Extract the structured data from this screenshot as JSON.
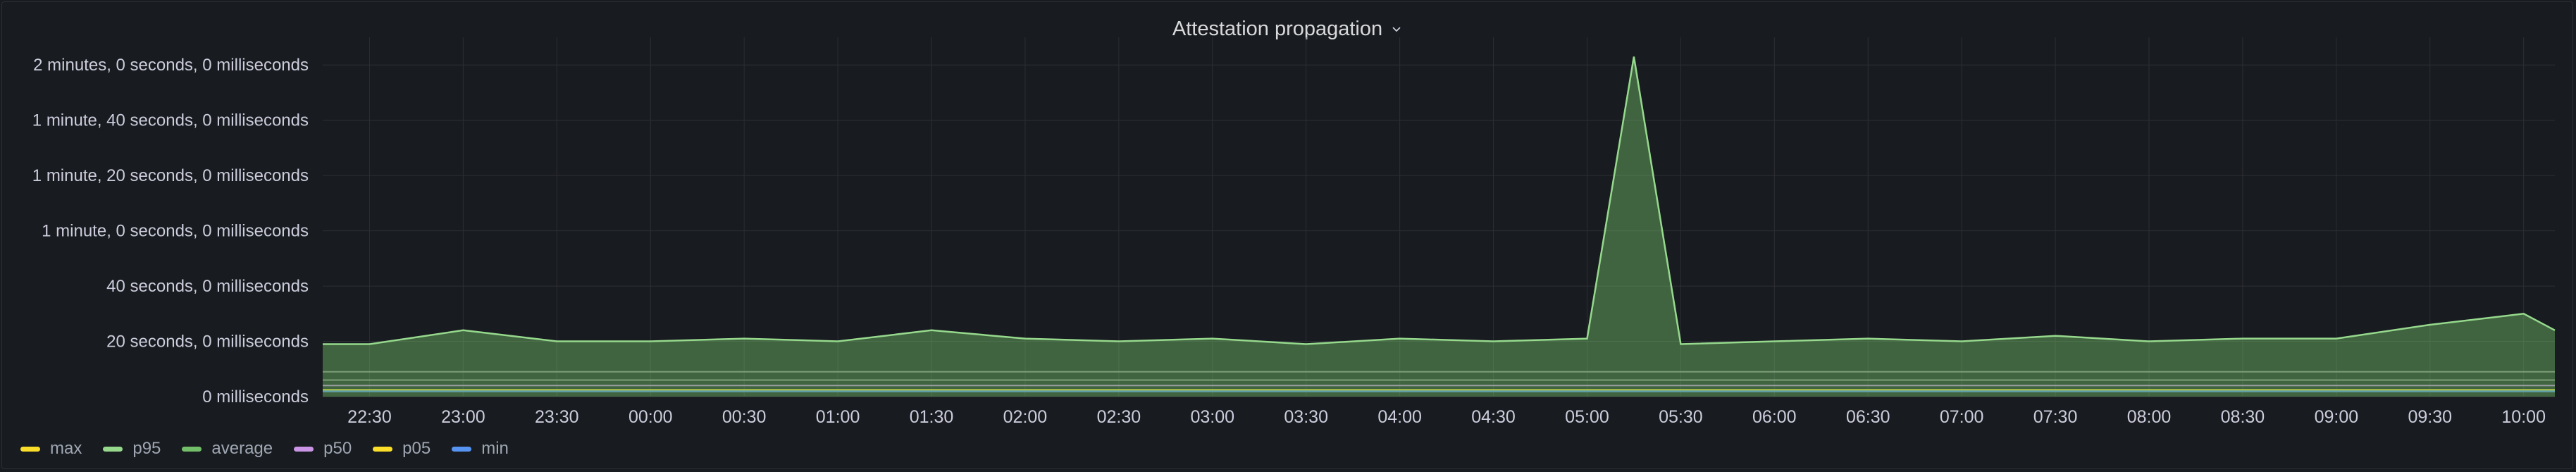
{
  "panel": {
    "title": "Attestation propagation"
  },
  "colors": {
    "max": "#fade2a",
    "p95": "#96d98d",
    "average": "#73bf69",
    "p50": "#ca95e5",
    "p05": "#fade2a",
    "min": "#5794f2",
    "grid": "#2c2f35"
  },
  "chart_data": {
    "type": "area",
    "title": "Attestation propagation",
    "y_unit": "seconds",
    "ylim": [
      0,
      130
    ],
    "y_ticks": [
      {
        "value": 0,
        "label": "0 milliseconds"
      },
      {
        "value": 20,
        "label": "20 seconds, 0 milliseconds"
      },
      {
        "value": 40,
        "label": "40 seconds, 0 milliseconds"
      },
      {
        "value": 60,
        "label": "1 minute, 0 seconds, 0 milliseconds"
      },
      {
        "value": 80,
        "label": "1 minute, 20 seconds, 0 milliseconds"
      },
      {
        "value": 100,
        "label": "1 minute, 40 seconds, 0 milliseconds"
      },
      {
        "value": 120,
        "label": "2 minutes, 0 seconds, 0 milliseconds"
      }
    ],
    "x_ticks": [
      "22:30",
      "23:00",
      "23:30",
      "00:00",
      "00:30",
      "01:00",
      "01:30",
      "02:00",
      "02:30",
      "03:00",
      "03:30",
      "04:00",
      "04:30",
      "05:00",
      "05:30",
      "06:00",
      "06:30",
      "07:00",
      "07:30",
      "08:00",
      "08:30",
      "09:00",
      "09:30",
      "10:00"
    ],
    "x_range": [
      "22:15",
      "10:10"
    ],
    "grid": true,
    "legend_placement": "bottom-left",
    "series": [
      {
        "name": "max",
        "key": "max",
        "color": "#fade2a",
        "points": [
          [
            "22:15",
            19
          ],
          [
            "22:30",
            19
          ],
          [
            "23:00",
            24
          ],
          [
            "23:30",
            20
          ],
          [
            "00:00",
            20
          ],
          [
            "00:30",
            21
          ],
          [
            "01:00",
            20
          ],
          [
            "01:30",
            24
          ],
          [
            "02:00",
            21
          ],
          [
            "02:30",
            20
          ],
          [
            "03:00",
            21
          ],
          [
            "03:30",
            19
          ],
          [
            "04:00",
            21
          ],
          [
            "04:30",
            20
          ],
          [
            "05:00",
            21
          ],
          [
            "05:15",
            123
          ],
          [
            "05:30",
            19
          ],
          [
            "06:00",
            20
          ],
          [
            "06:30",
            21
          ],
          [
            "07:00",
            20
          ],
          [
            "07:30",
            22
          ],
          [
            "08:00",
            20
          ],
          [
            "08:30",
            21
          ],
          [
            "09:00",
            21
          ],
          [
            "09:30",
            26
          ],
          [
            "10:00",
            30
          ],
          [
            "10:10",
            24
          ]
        ]
      },
      {
        "name": "p95",
        "key": "p95",
        "color": "#96d98d",
        "points": [
          [
            "22:15",
            9
          ],
          [
            "23:00",
            9
          ],
          [
            "00:00",
            9
          ],
          [
            "01:00",
            9
          ],
          [
            "02:00",
            9
          ],
          [
            "03:00",
            9
          ],
          [
            "04:00",
            9
          ],
          [
            "05:00",
            9
          ],
          [
            "06:00",
            9
          ],
          [
            "07:00",
            9
          ],
          [
            "08:00",
            9
          ],
          [
            "09:00",
            9
          ],
          [
            "10:00",
            9
          ],
          [
            "10:10",
            9
          ]
        ]
      },
      {
        "name": "average",
        "key": "average",
        "color": "#73bf69",
        "points": [
          [
            "22:15",
            6
          ],
          [
            "23:00",
            6
          ],
          [
            "00:00",
            6
          ],
          [
            "01:00",
            6
          ],
          [
            "02:00",
            6
          ],
          [
            "03:00",
            6
          ],
          [
            "04:00",
            6
          ],
          [
            "05:00",
            6
          ],
          [
            "06:00",
            6
          ],
          [
            "07:00",
            6
          ],
          [
            "08:00",
            6
          ],
          [
            "09:00",
            6
          ],
          [
            "10:00",
            6
          ],
          [
            "10:10",
            6
          ]
        ]
      },
      {
        "name": "p50",
        "key": "p50",
        "color": "#ca95e5",
        "points": [
          [
            "22:15",
            4
          ],
          [
            "23:00",
            4
          ],
          [
            "00:00",
            4
          ],
          [
            "01:00",
            4
          ],
          [
            "02:00",
            4
          ],
          [
            "03:00",
            4
          ],
          [
            "04:00",
            4
          ],
          [
            "05:00",
            4
          ],
          [
            "06:00",
            4
          ],
          [
            "07:00",
            4
          ],
          [
            "08:00",
            4
          ],
          [
            "09:00",
            4
          ],
          [
            "10:00",
            4
          ],
          [
            "10:10",
            4
          ]
        ]
      },
      {
        "name": "p05",
        "key": "p05",
        "color": "#fade2a",
        "points": [
          [
            "22:15",
            2.5
          ],
          [
            "23:00",
            2.5
          ],
          [
            "00:00",
            2.5
          ],
          [
            "01:00",
            2.5
          ],
          [
            "02:00",
            2.5
          ],
          [
            "03:00",
            2.5
          ],
          [
            "04:00",
            2.5
          ],
          [
            "05:00",
            2.5
          ],
          [
            "06:00",
            2.5
          ],
          [
            "07:00",
            2.5
          ],
          [
            "08:00",
            2.5
          ],
          [
            "09:00",
            2.5
          ],
          [
            "10:00",
            2.5
          ],
          [
            "10:10",
            2.5
          ]
        ]
      },
      {
        "name": "min",
        "key": "min",
        "color": "#5794f2",
        "points": [
          [
            "22:15",
            2
          ],
          [
            "23:00",
            2
          ],
          [
            "00:00",
            2
          ],
          [
            "01:00",
            2
          ],
          [
            "02:00",
            2
          ],
          [
            "03:00",
            2
          ],
          [
            "04:00",
            2
          ],
          [
            "05:00",
            2
          ],
          [
            "06:00",
            2
          ],
          [
            "07:00",
            2
          ],
          [
            "08:00",
            2
          ],
          [
            "09:00",
            2
          ],
          [
            "10:00",
            2
          ],
          [
            "10:10",
            2
          ]
        ]
      }
    ]
  },
  "legend": [
    {
      "key": "max",
      "label": "max"
    },
    {
      "key": "p95",
      "label": "p95"
    },
    {
      "key": "average",
      "label": "average"
    },
    {
      "key": "p50",
      "label": "p50"
    },
    {
      "key": "p05",
      "label": "p05"
    },
    {
      "key": "min",
      "label": "min"
    }
  ]
}
